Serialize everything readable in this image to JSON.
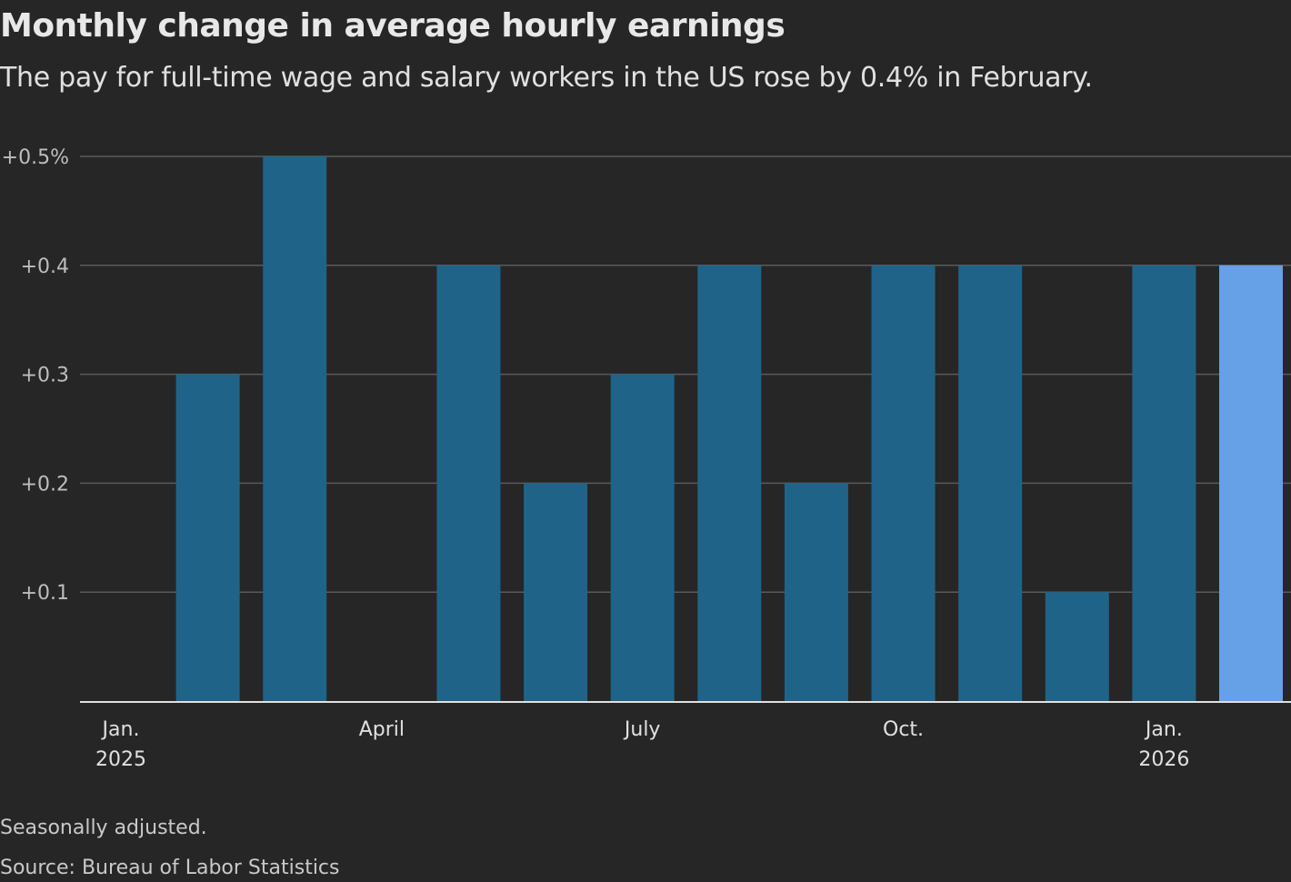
{
  "chart_data": {
    "type": "bar",
    "title": "Monthly change in average hourly earnings",
    "subtitle": "The pay for full-time wage and salary workers in the US rose by 0.4% in February.",
    "categories": [
      "Jan. 2025",
      "Feb. 2025",
      "Mar. 2025",
      "Apr. 2025",
      "May 2025",
      "Jun. 2025",
      "Jul. 2025",
      "Aug. 2025",
      "Sep. 2025",
      "Oct. 2025",
      "Nov. 2025",
      "Dec. 2025",
      "Jan. 2026",
      "Feb. 2026"
    ],
    "values": [
      null,
      0.3,
      0.5,
      null,
      0.4,
      0.2,
      0.3,
      0.4,
      0.2,
      0.4,
      0.4,
      0.1,
      0.4,
      0.4
    ],
    "highlight_index": 13,
    "ylim": [
      0,
      0.5
    ],
    "y_ticks": [
      {
        "value": 0.5,
        "label": "+0.5%"
      },
      {
        "value": 0.4,
        "label": "+0.4"
      },
      {
        "value": 0.3,
        "label": "+0.3"
      },
      {
        "value": 0.2,
        "label": "+0.2"
      },
      {
        "value": 0.1,
        "label": "+0.1"
      }
    ],
    "x_ticks": [
      {
        "index": 0,
        "line1": "Jan.",
        "line2": "2025"
      },
      {
        "index": 3,
        "line1": "April",
        "line2": ""
      },
      {
        "index": 6,
        "line1": "July",
        "line2": ""
      },
      {
        "index": 9,
        "line1": "Oct.",
        "line2": ""
      },
      {
        "index": 12,
        "line1": "Jan.",
        "line2": "2026"
      }
    ],
    "xlabel": "",
    "ylabel": "",
    "grid": true,
    "colors": {
      "bar": "#1f6488",
      "highlight": "#66a0e6",
      "grid": "#5a5a5a",
      "baseline": "#e0e0e0"
    }
  },
  "footer": {
    "note": "Seasonally adjusted.",
    "source": "Source: Bureau of Labor Statistics"
  }
}
